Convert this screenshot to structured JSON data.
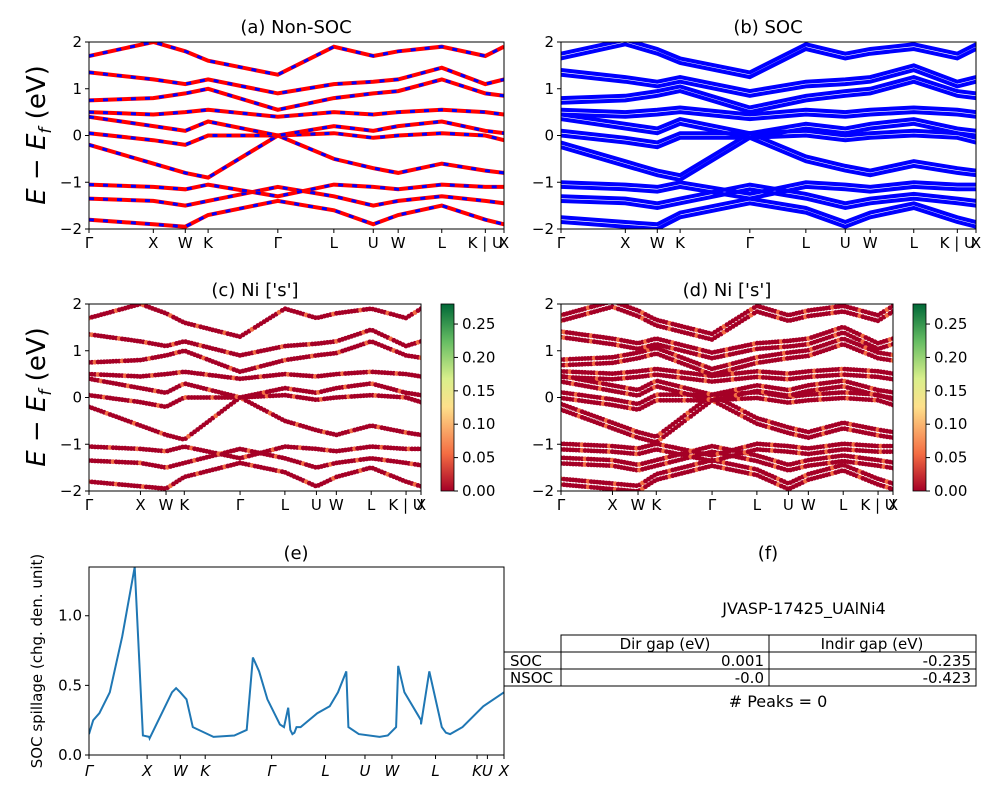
{
  "kpoints": {
    "labels_std": [
      "Γ",
      "X",
      "W",
      "K",
      "Γ",
      "L",
      "U",
      "W",
      "L",
      "K | U",
      "X"
    ],
    "labels_spill": [
      "Γ",
      "X",
      "W",
      "K",
      "Γ",
      "L",
      "U",
      "W",
      "L",
      "KU",
      "X"
    ]
  },
  "ylabel_band": "E − E_f (eV)",
  "colorbar": {
    "ticks": [
      "0.00",
      "0.05",
      "0.10",
      "0.15",
      "0.20",
      "0.25"
    ],
    "range": [
      0,
      0.28
    ],
    "colors": [
      "#a50026",
      "#f46d43",
      "#fee08b",
      "#d9ef8b",
      "#66bd63",
      "#006837"
    ]
  },
  "colors": {
    "band_line_red": "#ff0000",
    "band_line_blue": "#0000ff",
    "spillage_line": "#1f77b4"
  },
  "panels": {
    "a": {
      "title": "(a) Non-SOC"
    },
    "b": {
      "title": "(b) SOC"
    },
    "c": {
      "title": "(c)  Ni ['s']"
    },
    "d": {
      "title": "(d) Ni ['s']"
    },
    "e": {
      "title": "(e)",
      "ylabel": "SOC spillage (chg. den. unit)"
    },
    "f": {
      "title": "(f)",
      "material": "JVASP-17425_UAlNi4",
      "table": {
        "header": [
          "",
          "Dir gap (eV)",
          "Indir gap (eV)"
        ],
        "rows": [
          [
            "SOC",
            "0.001",
            "-0.235"
          ],
          [
            "NSOC",
            "-0.0",
            "-0.423"
          ]
        ]
      },
      "peaks": "# Peaks = 0"
    }
  },
  "chart_data": [
    {
      "type": "line",
      "title": "(a) Non-SOC",
      "ylabel": "E − E_f (eV)",
      "ylim": [
        -2,
        2
      ],
      "yticks": [
        -2,
        -1,
        0,
        1,
        2
      ],
      "x_ticks": [
        "Γ",
        "X",
        "W",
        "K",
        "Γ",
        "L",
        "U",
        "W",
        "L",
        "K | U",
        "X"
      ],
      "series": [
        {
          "y": [
            -1.8,
            -1.9,
            -1.95,
            -1.7,
            -1.4,
            -1.6,
            -1.9,
            -1.7,
            -1.5,
            -1.8,
            -1.9
          ]
        },
        {
          "y": [
            -1.35,
            -1.4,
            -1.5,
            -1.4,
            -1.1,
            -1.3,
            -1.5,
            -1.4,
            -1.3,
            -1.4,
            -1.45
          ]
        },
        {
          "y": [
            -1.05,
            -1.1,
            -1.15,
            -1.05,
            -1.3,
            -1.05,
            -1.1,
            -1.15,
            -1.05,
            -1.1,
            -1.1
          ]
        },
        {
          "y": [
            -0.2,
            -0.6,
            -0.8,
            -0.9,
            0.0,
            -0.5,
            -0.7,
            -0.8,
            -0.6,
            -0.75,
            -0.8
          ]
        },
        {
          "y": [
            0.05,
            -0.1,
            -0.2,
            0.0,
            0.0,
            0.05,
            -0.05,
            0.0,
            0.05,
            0.0,
            -0.1
          ]
        },
        {
          "y": [
            0.4,
            0.2,
            0.1,
            0.3,
            0.0,
            0.2,
            0.1,
            0.2,
            0.3,
            0.1,
            0.05
          ]
        },
        {
          "y": [
            0.5,
            0.45,
            0.5,
            0.55,
            0.4,
            0.5,
            0.45,
            0.5,
            0.55,
            0.5,
            0.45
          ]
        },
        {
          "y": [
            0.75,
            0.8,
            0.9,
            1.0,
            0.55,
            0.8,
            0.9,
            0.95,
            1.2,
            0.9,
            0.85
          ]
        },
        {
          "y": [
            1.35,
            1.2,
            1.1,
            1.2,
            0.9,
            1.1,
            1.15,
            1.2,
            1.45,
            1.1,
            1.2
          ]
        },
        {
          "y": [
            1.7,
            2.0,
            1.8,
            1.6,
            1.3,
            1.9,
            1.7,
            1.8,
            1.9,
            1.7,
            1.9
          ]
        }
      ]
    },
    {
      "type": "line",
      "title": "(b) SOC",
      "ylim": [
        -2,
        2
      ],
      "yticks": [
        -2,
        -1,
        0,
        1,
        2
      ],
      "x_ticks": [
        "Γ",
        "X",
        "W",
        "K",
        "Γ",
        "L",
        "U",
        "W",
        "L",
        "K | U",
        "X"
      ],
      "series": [
        {
          "y": [
            -1.8,
            -1.9,
            -1.95,
            -1.7,
            -1.4,
            -1.6,
            -1.9,
            -1.7,
            -1.5,
            -1.8,
            -1.9
          ]
        },
        {
          "y": [
            -1.35,
            -1.4,
            -1.5,
            -1.4,
            -1.1,
            -1.3,
            -1.5,
            -1.4,
            -1.3,
            -1.4,
            -1.45
          ]
        },
        {
          "y": [
            -1.05,
            -1.1,
            -1.15,
            -1.05,
            -1.3,
            -1.05,
            -1.1,
            -1.15,
            -1.05,
            -1.1,
            -1.1
          ]
        },
        {
          "y": [
            -0.2,
            -0.6,
            -0.8,
            -0.9,
            0.0,
            -0.5,
            -0.7,
            -0.8,
            -0.6,
            -0.75,
            -0.8
          ]
        },
        {
          "y": [
            0.05,
            -0.1,
            -0.2,
            0.0,
            0.0,
            0.05,
            -0.05,
            0.0,
            0.05,
            0.0,
            -0.1
          ]
        },
        {
          "y": [
            0.4,
            0.2,
            0.1,
            0.3,
            0.0,
            0.2,
            0.1,
            0.2,
            0.3,
            0.1,
            0.05
          ]
        },
        {
          "y": [
            0.5,
            0.45,
            0.5,
            0.55,
            0.4,
            0.5,
            0.45,
            0.5,
            0.55,
            0.5,
            0.45
          ]
        },
        {
          "y": [
            0.75,
            0.8,
            0.9,
            1.0,
            0.55,
            0.8,
            0.9,
            0.95,
            1.2,
            0.9,
            0.85
          ]
        },
        {
          "y": [
            1.35,
            1.2,
            1.1,
            1.2,
            0.9,
            1.1,
            1.15,
            1.2,
            1.45,
            1.1,
            1.2
          ]
        },
        {
          "y": [
            1.7,
            2.0,
            1.8,
            1.6,
            1.3,
            1.9,
            1.7,
            1.8,
            1.9,
            1.7,
            1.9
          ]
        }
      ]
    },
    {
      "type": "scatter",
      "title": "(c)  Ni ['s']",
      "ylabel": "E − E_f (eV)",
      "ylim": [
        -2,
        2
      ],
      "yticks": [
        -2,
        -1,
        0,
        1,
        2
      ],
      "x_ticks": [
        "Γ",
        "X",
        "W",
        "K",
        "Γ",
        "L",
        "U",
        "W",
        "L",
        "K | U",
        "X"
      ],
      "color_range": [
        0,
        0.28
      ],
      "values": "Ni s-orbital weight mostly 0.00–0.05 across all bands"
    },
    {
      "type": "scatter",
      "title": "(d) Ni ['s']",
      "ylim": [
        -2,
        2
      ],
      "yticks": [
        -2,
        -1,
        0,
        1,
        2
      ],
      "x_ticks": [
        "Γ",
        "X",
        "W",
        "K",
        "Γ",
        "L",
        "U",
        "W",
        "L",
        "K | U",
        "X"
      ],
      "color_range": [
        0,
        0.28
      ],
      "values": "Ni s-orbital weight mostly 0.00–0.05 across all bands"
    },
    {
      "type": "line",
      "title": "(e)",
      "ylabel": "SOC spillage (chg. den. unit)",
      "ylim": [
        0,
        1.35
      ],
      "yticks": [
        0.0,
        0.5,
        1.0
      ],
      "x_ticks": [
        "Γ",
        "X",
        "W",
        "K",
        "Γ",
        "L",
        "U",
        "W",
        "L",
        "KU",
        "X"
      ],
      "x": [
        0,
        0.01,
        0.025,
        0.05,
        0.08,
        0.11,
        0.13,
        0.145,
        0.146,
        0.2,
        0.21,
        0.22,
        0.235,
        0.25,
        0.3,
        0.35,
        0.38,
        0.395,
        0.41,
        0.43,
        0.46,
        0.47,
        0.48,
        0.485,
        0.49,
        0.495,
        0.5,
        0.51,
        0.55,
        0.58,
        0.6,
        0.62,
        0.625,
        0.65,
        0.7,
        0.72,
        0.74,
        0.745,
        0.76,
        0.8,
        0.8,
        0.82,
        0.85,
        0.86,
        0.87,
        0.9,
        0.95,
        1.0
      ],
      "y": [
        0.15,
        0.25,
        0.3,
        0.45,
        0.85,
        1.35,
        0.14,
        0.13,
        0.12,
        0.45,
        0.48,
        0.45,
        0.4,
        0.2,
        0.13,
        0.14,
        0.18,
        0.7,
        0.6,
        0.4,
        0.22,
        0.2,
        0.34,
        0.18,
        0.15,
        0.16,
        0.2,
        0.2,
        0.3,
        0.35,
        0.45,
        0.6,
        0.2,
        0.15,
        0.13,
        0.14,
        0.2,
        0.64,
        0.45,
        0.25,
        0.22,
        0.6,
        0.2,
        0.16,
        0.15,
        0.2,
        0.35,
        0.45
      ]
    }
  ]
}
